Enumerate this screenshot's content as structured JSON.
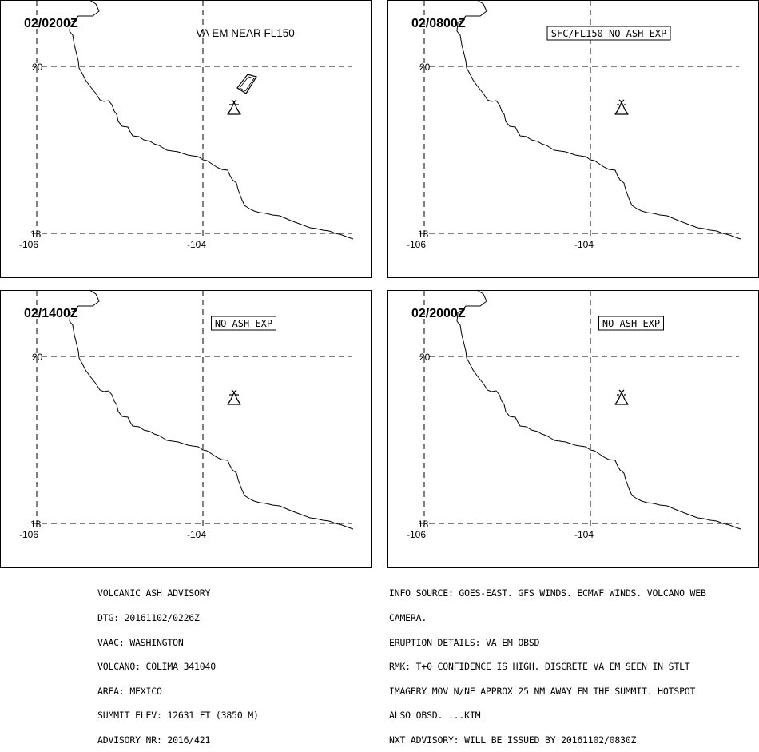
{
  "panels": [
    {
      "time_label": "02/0200Z",
      "annotation": "VA EM NEAR FL150",
      "annotation_boxed": false,
      "has_ash_polygon": true
    },
    {
      "time_label": "02/0800Z",
      "annotation": "SFC/FL150 NO ASH EXP",
      "annotation_boxed": true,
      "has_ash_polygon": false
    },
    {
      "time_label": "02/1400Z",
      "annotation": "NO ASH EXP",
      "annotation_boxed": true,
      "has_ash_polygon": false
    },
    {
      "time_label": "02/2000Z",
      "annotation": "NO ASH EXP",
      "annotation_boxed": true,
      "has_ash_polygon": false
    }
  ],
  "axis_labels": {
    "lat_top": "20",
    "lat_bottom": "18",
    "lon_left": "-106",
    "lon_mid": "-104"
  },
  "advisory_left": [
    "VOLCANIC ASH ADVISORY",
    "DTG: 20161102/0226Z",
    "VAAC: WASHINGTON",
    "VOLCANO: COLIMA 341040",
    "AREA: MEXICO",
    "SUMMIT ELEV: 12631 FT (3850 M)",
    "ADVISORY NR: 2016/421"
  ],
  "advisory_right": [
    "INFO SOURCE: GOES-EAST. GFS WINDS. ECMWF WINDS. VOLCANO WEB",
    "CAMERA.",
    "ERUPTION DETAILS: VA EM OBSD",
    "RMK: T+0 CONFIDENCE IS HIGH. DISCRETE VA EM SEEN IN STLT",
    "IMAGERY MOV N/NE APPROX 25 NM AWAY FM THE SUMMIT. HOTSPOT",
    "ALSO OBSD. ...KIM",
    "NXT ADVISORY: WILL BE ISSUED BY 20161102/0830Z"
  ]
}
